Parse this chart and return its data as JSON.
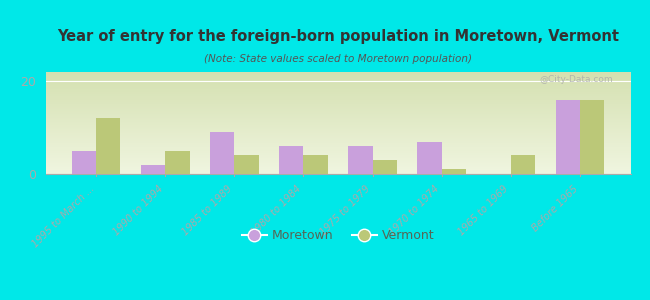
{
  "title": "Year of entry for the foreign-born population in Moretown, Vermont",
  "subtitle": "(Note: State values scaled to Moretown population)",
  "background_color": "#00e8e8",
  "plot_bg_top": "#d4e0b0",
  "plot_bg_bottom": "#f0f5e0",
  "categories": [
    "1995 to March ...",
    "1990 to 1994",
    "1985 to 1989",
    "1980 to 1984",
    "1975 to 1979",
    "1970 to 1974",
    "1965 to 1969",
    "Before 1965"
  ],
  "moretown_values": [
    5,
    2,
    9,
    6,
    6,
    7,
    0,
    16
  ],
  "vermont_values": [
    12,
    5,
    4,
    4,
    3,
    1,
    4,
    16
  ],
  "moretown_color": "#c9a0dc",
  "vermont_color": "#bbc878",
  "ylim": [
    0,
    22
  ],
  "yticks": [
    0,
    20
  ],
  "bar_width": 0.35,
  "legend_moretown": "Moretown",
  "legend_vermont": "Vermont",
  "watermark": "@City-Data.com",
  "title_color": "#333333",
  "subtitle_color": "#555555",
  "tick_label_color": "#556655",
  "axis_color": "#aaaaaa"
}
